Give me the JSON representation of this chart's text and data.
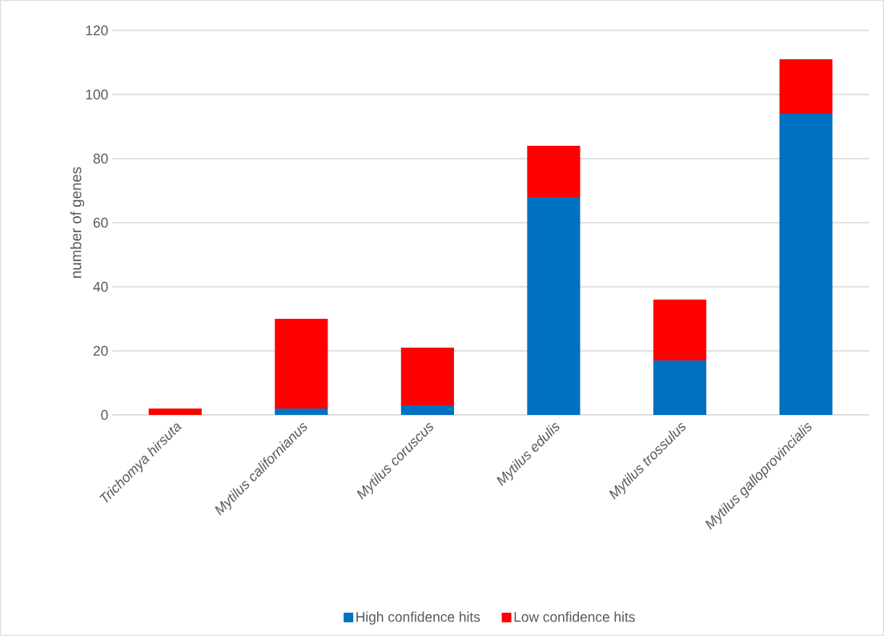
{
  "chart_data": {
    "type": "bar",
    "stacked": true,
    "ylabel": "number of genes",
    "categories": [
      "Trichomya hirsuta",
      "Mytilus californianus",
      "Mytilus coruscus",
      "Mytilus edulis",
      "Mytilus trossulus",
      "Mytilus galloprovincialis"
    ],
    "series": [
      {
        "name": "High confidence hits",
        "color": "#0070c0",
        "values": [
          0,
          2,
          3,
          68,
          17,
          94
        ]
      },
      {
        "name": "Low confidence hits",
        "color": "#ff0000",
        "values": [
          2,
          28,
          18,
          16,
          19,
          17
        ]
      }
    ],
    "ylim": [
      0,
      120
    ],
    "yticks": [
      0,
      20,
      40,
      60,
      80,
      100,
      120
    ],
    "grid": "y",
    "legend": "bottom"
  }
}
